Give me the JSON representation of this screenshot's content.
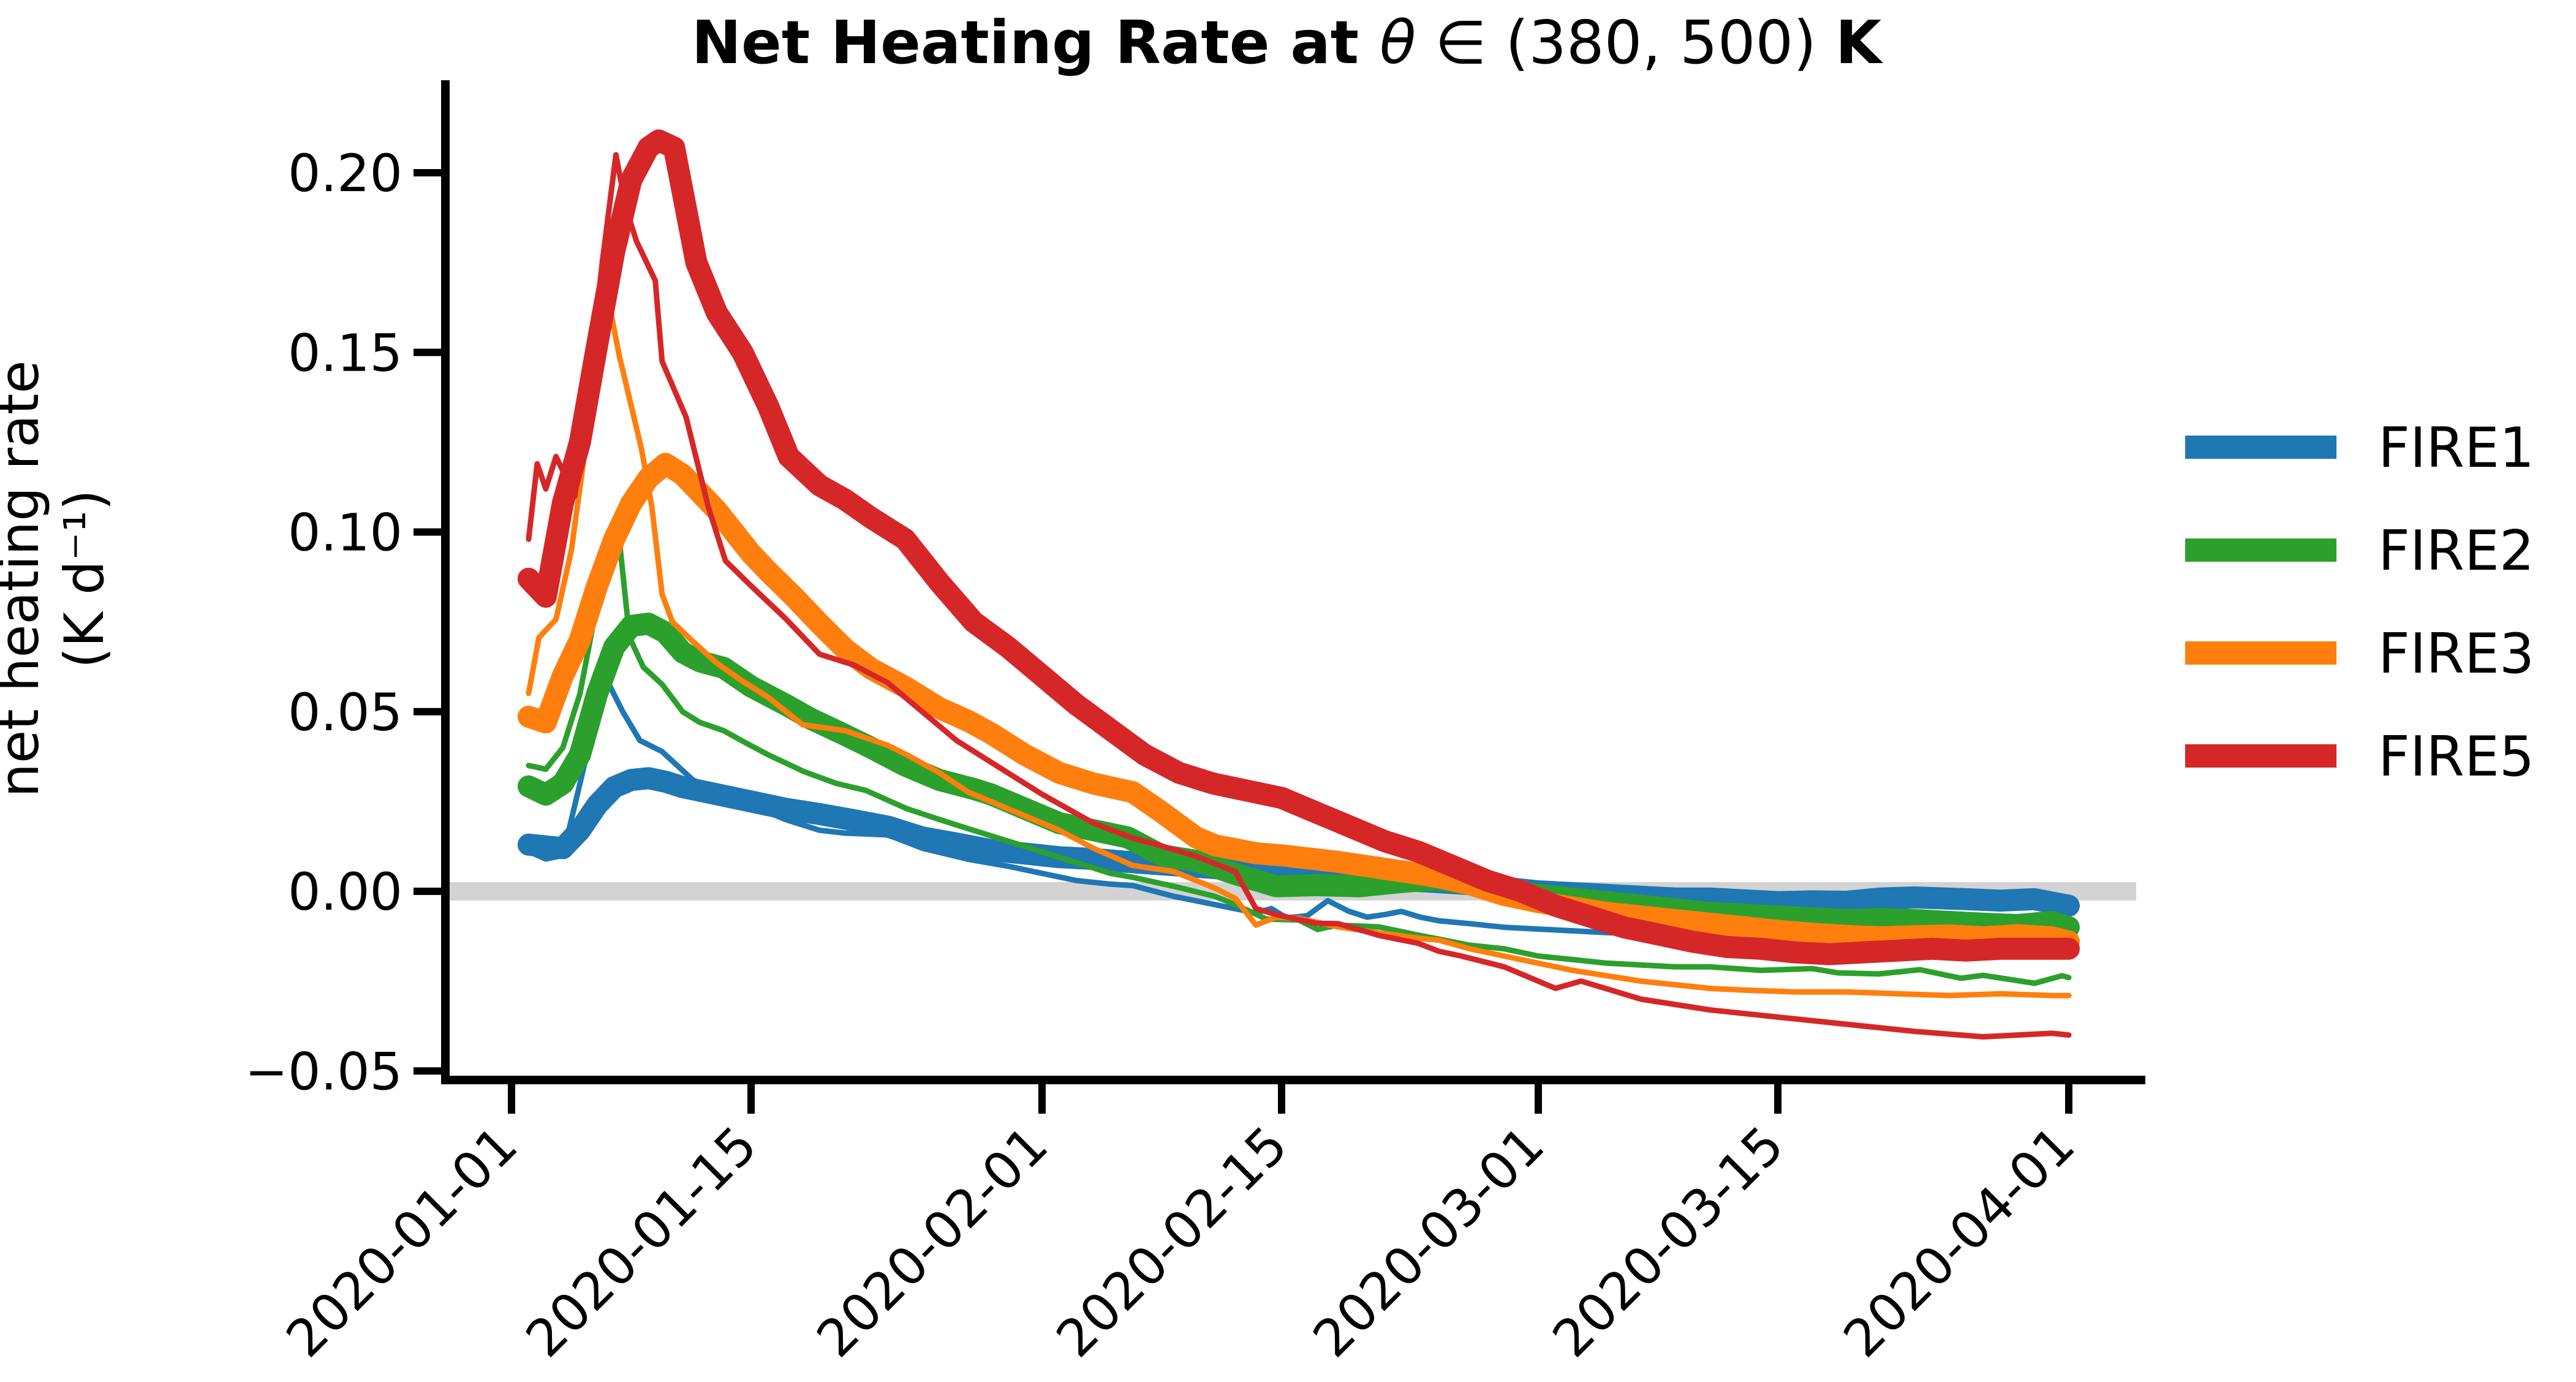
{
  "figure": {
    "title": {
      "prefix": "Net Heating Rate at ",
      "theta": "θ",
      "math_rest": " ∈ (380, 500)",
      "suffix": " K"
    },
    "y_axis": {
      "label_line1": "net heating rate",
      "label_line2": "(K d⁻¹)",
      "tick_labels": [
        "0.20",
        "0.15",
        "0.10",
        "0.05",
        "0.00",
        "−0.05"
      ],
      "tick_values": [
        0.2,
        0.15,
        0.1,
        0.05,
        0.0,
        -0.05
      ]
    },
    "x_axis": {
      "tick_labels": [
        "2020-01-01",
        "2020-01-15",
        "2020-02-01",
        "2020-02-15",
        "2020-03-01",
        "2020-03-15",
        "2020-04-01"
      ],
      "tick_days": [
        0,
        14,
        31,
        45,
        60,
        74,
        91
      ]
    },
    "legend": [
      {
        "label": "FIRE1",
        "color": "#1f77b4"
      },
      {
        "label": "FIRE2",
        "color": "#2ca02c"
      },
      {
        "label": "FIRE3",
        "color": "#ff7f0e"
      },
      {
        "label": "FIRE5",
        "color": "#d62728"
      }
    ],
    "zero_band_color": "#d3d3d3",
    "spine_color": "#000000"
  },
  "chart_data": {
    "type": "line",
    "title": "Net Heating Rate at θ ∈ (380, 500) K",
    "xlabel": "",
    "ylabel": "net heating rate (K d⁻¹)",
    "x_unit": "days since 2020-01-01",
    "x_tick_dates": [
      "2020-01-01",
      "2020-01-15",
      "2020-02-01",
      "2020-02-15",
      "2020-03-01",
      "2020-03-15",
      "2020-04-01"
    ],
    "ylim": [
      -0.0527,
      0.2257
    ],
    "xlim_days": [
      -3.9,
      95.2
    ],
    "grid": false,
    "legend_position": "right, outside axes",
    "zero_reference_band": {
      "y": 0.0,
      "color": "#d3d3d3"
    },
    "series": [
      {
        "name": "FIRE1-thick",
        "legend": "FIRE1",
        "color": "#1f77b4",
        "line": "thick",
        "x": [
          1,
          2,
          3,
          4,
          5,
          6,
          7,
          8,
          9,
          10,
          12,
          14,
          16,
          18,
          20,
          22,
          24,
          26,
          28,
          30,
          32,
          34,
          36,
          38,
          41,
          43,
          46,
          48,
          51,
          54,
          56,
          58,
          60,
          62,
          64,
          66,
          68,
          70,
          72,
          74,
          76,
          78,
          80,
          82,
          85,
          87,
          89,
          91
        ],
        "y": [
          0.013,
          0.0125,
          0.012,
          0.017,
          0.024,
          0.029,
          0.031,
          0.0315,
          0.0305,
          0.029,
          0.027,
          0.025,
          0.023,
          0.0215,
          0.0198,
          0.018,
          0.015,
          0.0133,
          0.0115,
          0.0105,
          0.0095,
          0.009,
          0.0082,
          0.0075,
          0.0065,
          0.0055,
          0.0046,
          0.004,
          0.0034,
          0.0026,
          0.002,
          0.001,
          0.0,
          -0.0005,
          -0.001,
          -0.0015,
          -0.002,
          -0.002,
          -0.0025,
          -0.003,
          -0.0028,
          -0.0029,
          -0.002,
          -0.0017,
          -0.0022,
          -0.0026,
          -0.0022,
          -0.004
        ]
      },
      {
        "name": "FIRE1-thin",
        "legend": "FIRE1",
        "color": "#1f77b4",
        "line": "thin",
        "x": [
          1,
          2,
          3,
          4,
          5,
          5.7,
          6.5,
          7.5,
          8.8,
          10.6,
          12,
          14,
          16,
          18,
          19.5,
          22,
          24,
          26.7,
          29,
          31,
          33,
          35,
          36.3,
          38.7,
          41.1,
          43.5,
          44.4,
          45.3,
          46.5,
          47.7,
          48.9,
          50,
          51,
          52,
          53.1,
          54.2,
          56,
          58,
          60,
          62,
          64,
          67,
          70,
          73,
          76,
          79,
          82,
          85,
          88,
          91
        ],
        "y": [
          0.0111,
          0.009,
          0.01,
          0.03,
          0.05,
          0.0576,
          0.05,
          0.042,
          0.0389,
          0.031,
          0.028,
          0.024,
          0.02,
          0.017,
          0.0162,
          0.0157,
          0.012,
          0.0089,
          0.007,
          0.005,
          0.003,
          0.002,
          0.0016,
          -0.0014,
          -0.0037,
          -0.006,
          -0.0048,
          -0.0074,
          -0.0068,
          -0.0026,
          -0.0055,
          -0.0072,
          -0.0065,
          -0.0056,
          -0.0072,
          -0.0082,
          -0.009,
          -0.01,
          -0.0105,
          -0.011,
          -0.0115,
          -0.012,
          -0.0125,
          -0.0125,
          -0.013,
          -0.013,
          -0.0125,
          -0.013,
          -0.0128,
          -0.013
        ]
      },
      {
        "name": "FIRE2-thick",
        "legend": "FIRE2",
        "color": "#2ca02c",
        "line": "thick",
        "x": [
          1,
          2,
          3,
          4,
          5,
          6,
          7,
          8,
          9,
          10,
          11,
          12.4,
          14,
          16,
          17.5,
          19.5,
          21,
          23,
          25,
          27,
          28,
          30,
          32,
          34,
          36,
          38,
          40,
          42.3,
          44.7,
          47,
          49.5,
          52,
          54.2,
          56,
          58,
          60,
          62,
          64,
          66,
          68,
          70,
          72,
          74,
          76,
          78,
          80,
          82,
          84,
          86,
          88,
          90,
          91
        ],
        "y": [
          0.0292,
          0.0269,
          0.03,
          0.038,
          0.055,
          0.068,
          0.0739,
          0.0745,
          0.072,
          0.0665,
          0.064,
          0.0622,
          0.057,
          0.052,
          0.048,
          0.0435,
          0.04,
          0.035,
          0.031,
          0.0285,
          0.027,
          0.023,
          0.019,
          0.017,
          0.015,
          0.01,
          0.0085,
          0.0048,
          0.0014,
          0.0017,
          0.0014,
          0.0026,
          0.0034,
          0.002,
          0.0,
          -0.001,
          -0.002,
          -0.003,
          -0.004,
          -0.005,
          -0.006,
          -0.0065,
          -0.007,
          -0.0075,
          -0.008,
          -0.0077,
          -0.008,
          -0.0085,
          -0.009,
          -0.0094,
          -0.0085,
          -0.01
        ]
      },
      {
        "name": "FIRE2-thin",
        "legend": "FIRE2",
        "color": "#2ca02c",
        "line": "thin",
        "x": [
          1,
          2,
          3,
          4,
          5,
          6.2,
          6.9,
          7.7,
          8.8,
          10,
          11,
          12.4,
          13.5,
          15,
          17.1,
          19,
          20.7,
          23.1,
          25,
          26.7,
          29,
          31,
          33,
          35,
          36.3,
          38.7,
          41.1,
          42.3,
          44.1,
          46,
          47.1,
          48.3,
          50.7,
          53.1,
          54.2,
          56,
          58,
          60,
          62,
          64,
          66,
          68,
          70,
          73,
          76,
          77.5,
          79.9,
          82.3,
          84.7,
          86,
          87.1,
          89,
          90.6,
          91
        ],
        "y": [
          0.035,
          0.034,
          0.04,
          0.055,
          0.08,
          0.1023,
          0.0706,
          0.0624,
          0.0576,
          0.05,
          0.047,
          0.0447,
          0.0418,
          0.038,
          0.0333,
          0.03,
          0.0281,
          0.023,
          0.02,
          0.0174,
          0.014,
          0.011,
          0.008,
          0.005,
          0.0039,
          0.0014,
          -0.0014,
          -0.0037,
          -0.0077,
          -0.008,
          -0.0106,
          -0.0094,
          -0.0099,
          -0.0123,
          -0.0133,
          -0.015,
          -0.016,
          -0.018,
          -0.019,
          -0.02,
          -0.0205,
          -0.021,
          -0.021,
          -0.022,
          -0.0215,
          -0.0227,
          -0.023,
          -0.0218,
          -0.0242,
          -0.0234,
          -0.0242,
          -0.0256,
          -0.0235,
          -0.024
        ]
      },
      {
        "name": "FIRE3-thick",
        "legend": "FIRE3",
        "color": "#ff7f0e",
        "line": "thick",
        "x": [
          1,
          2,
          3,
          4,
          5,
          6,
          7,
          8,
          9,
          10,
          11,
          12,
          13,
          14,
          15,
          16.5,
          18,
          19.5,
          21,
          23.1,
          25,
          26.7,
          28,
          30,
          32,
          34,
          36.3,
          38,
          40,
          41.1,
          43.5,
          45,
          48.3,
          50,
          53.1,
          54.2,
          56,
          58,
          60,
          62,
          64,
          66,
          68,
          70,
          72,
          74,
          76,
          78,
          80,
          82,
          84,
          86,
          88,
          90,
          91
        ],
        "y": [
          0.0486,
          0.047,
          0.06,
          0.07,
          0.085,
          0.098,
          0.108,
          0.115,
          0.119,
          0.116,
          0.111,
          0.106,
          0.1,
          0.094,
          0.089,
          0.082,
          0.0745,
          0.0674,
          0.062,
          0.0566,
          0.051,
          0.0474,
          0.044,
          0.038,
          0.033,
          0.03,
          0.0276,
          0.022,
          0.015,
          0.0128,
          0.0106,
          0.01,
          0.0082,
          0.007,
          0.0048,
          0.0039,
          0.002,
          -0.001,
          -0.003,
          -0.0045,
          -0.006,
          -0.007,
          -0.008,
          -0.009,
          -0.01,
          -0.011,
          -0.0118,
          -0.0124,
          -0.0128,
          -0.0125,
          -0.0123,
          -0.0128,
          -0.0122,
          -0.0128,
          -0.014
        ]
      },
      {
        "name": "FIRE3-thin",
        "legend": "FIRE3",
        "color": "#ff7f0e",
        "line": "thin",
        "x": [
          1,
          1.6,
          2.6,
          3.5,
          4.5,
          5.4,
          6.3,
          7.6,
          8.2,
          8.8,
          9.4,
          10.5,
          12,
          13.5,
          15,
          17,
          19.5,
          22,
          23.1,
          25,
          26.7,
          28,
          30,
          32,
          34,
          36.3,
          38.7,
          41.1,
          42.3,
          43.5,
          44.7,
          46,
          48.3,
          50.7,
          53.1,
          54.2,
          56,
          58,
          60,
          62,
          64,
          66,
          68,
          70,
          72,
          75,
          78,
          81,
          84,
          87,
          90,
          91
        ],
        "y": [
          0.0551,
          0.0706,
          0.0757,
          0.095,
          0.13,
          0.171,
          0.149,
          0.123,
          0.107,
          0.0827,
          0.075,
          0.07,
          0.0635,
          0.0585,
          0.054,
          0.0464,
          0.0447,
          0.0406,
          0.038,
          0.033,
          0.0276,
          0.025,
          0.021,
          0.017,
          0.012,
          0.0072,
          0.0055,
          0.0009,
          -0.002,
          -0.0094,
          -0.0072,
          -0.0075,
          -0.0099,
          -0.0116,
          -0.0131,
          -0.0136,
          -0.016,
          -0.018,
          -0.02,
          -0.022,
          -0.0235,
          -0.025,
          -0.026,
          -0.027,
          -0.0275,
          -0.028,
          -0.028,
          -0.0285,
          -0.029,
          -0.0285,
          -0.029,
          -0.029
        ]
      },
      {
        "name": "FIRE5-thick",
        "legend": "FIRE5",
        "color": "#d62728",
        "line": "thick",
        "x": [
          1,
          2,
          3,
          4,
          5,
          6,
          7,
          8,
          8.6,
          9.5,
          10.8,
          12,
          13.5,
          15,
          16.2,
          18,
          19.5,
          21,
          23,
          25,
          27,
          29,
          31,
          33,
          35,
          37,
          39,
          41,
          43,
          45,
          47,
          49,
          51,
          53,
          55,
          57,
          59,
          61,
          63,
          65,
          67,
          69,
          71,
          73,
          75,
          77,
          79,
          81,
          83,
          85,
          87,
          89,
          91
        ],
        "y": [
          0.087,
          0.082,
          0.108,
          0.125,
          0.152,
          0.178,
          0.198,
          0.207,
          0.209,
          0.207,
          0.175,
          0.161,
          0.15,
          0.135,
          0.121,
          0.113,
          0.109,
          0.104,
          0.098,
          0.086,
          0.075,
          0.068,
          0.06,
          0.052,
          0.045,
          0.038,
          0.033,
          0.03,
          0.028,
          0.026,
          0.022,
          0.018,
          0.014,
          0.011,
          0.007,
          0.003,
          0.0,
          -0.004,
          -0.007,
          -0.01,
          -0.012,
          -0.014,
          -0.0155,
          -0.016,
          -0.017,
          -0.0175,
          -0.017,
          -0.0165,
          -0.016,
          -0.0165,
          -0.016,
          -0.016,
          -0.016
        ]
      },
      {
        "name": "FIRE5-thin",
        "legend": "FIRE5",
        "color": "#d62728",
        "line": "thin",
        "x": [
          1,
          1.5,
          2,
          2.6,
          3.2,
          3.7,
          4.5,
          5.3,
          6.1,
          6.7,
          7.3,
          8.4,
          8.8,
          10.2,
          11.5,
          12.5,
          14,
          16,
          18,
          20,
          22,
          24,
          26,
          28,
          31,
          34,
          36.3,
          37.5,
          39.9,
          42.3,
          43.5,
          44.7,
          47,
          48.3,
          49.5,
          50.7,
          53,
          54.2,
          55.5,
          58,
          61,
          62.5,
          66,
          70,
          74,
          78,
          82,
          86,
          88,
          90,
          91
        ],
        "y": [
          0.098,
          0.119,
          0.112,
          0.121,
          0.115,
          0.11,
          0.14,
          0.175,
          0.205,
          0.19,
          0.181,
          0.17,
          0.1475,
          0.132,
          0.107,
          0.092,
          0.085,
          0.076,
          0.066,
          0.063,
          0.058,
          0.05,
          0.042,
          0.036,
          0.027,
          0.019,
          0.0148,
          0.0133,
          0.0099,
          0.0055,
          -0.0048,
          -0.0065,
          -0.0089,
          -0.009,
          -0.0106,
          -0.0123,
          -0.0145,
          -0.0167,
          -0.018,
          -0.021,
          -0.027,
          -0.025,
          -0.03,
          -0.033,
          -0.035,
          -0.037,
          -0.039,
          -0.0405,
          -0.04,
          -0.0395,
          -0.04
        ]
      }
    ]
  }
}
